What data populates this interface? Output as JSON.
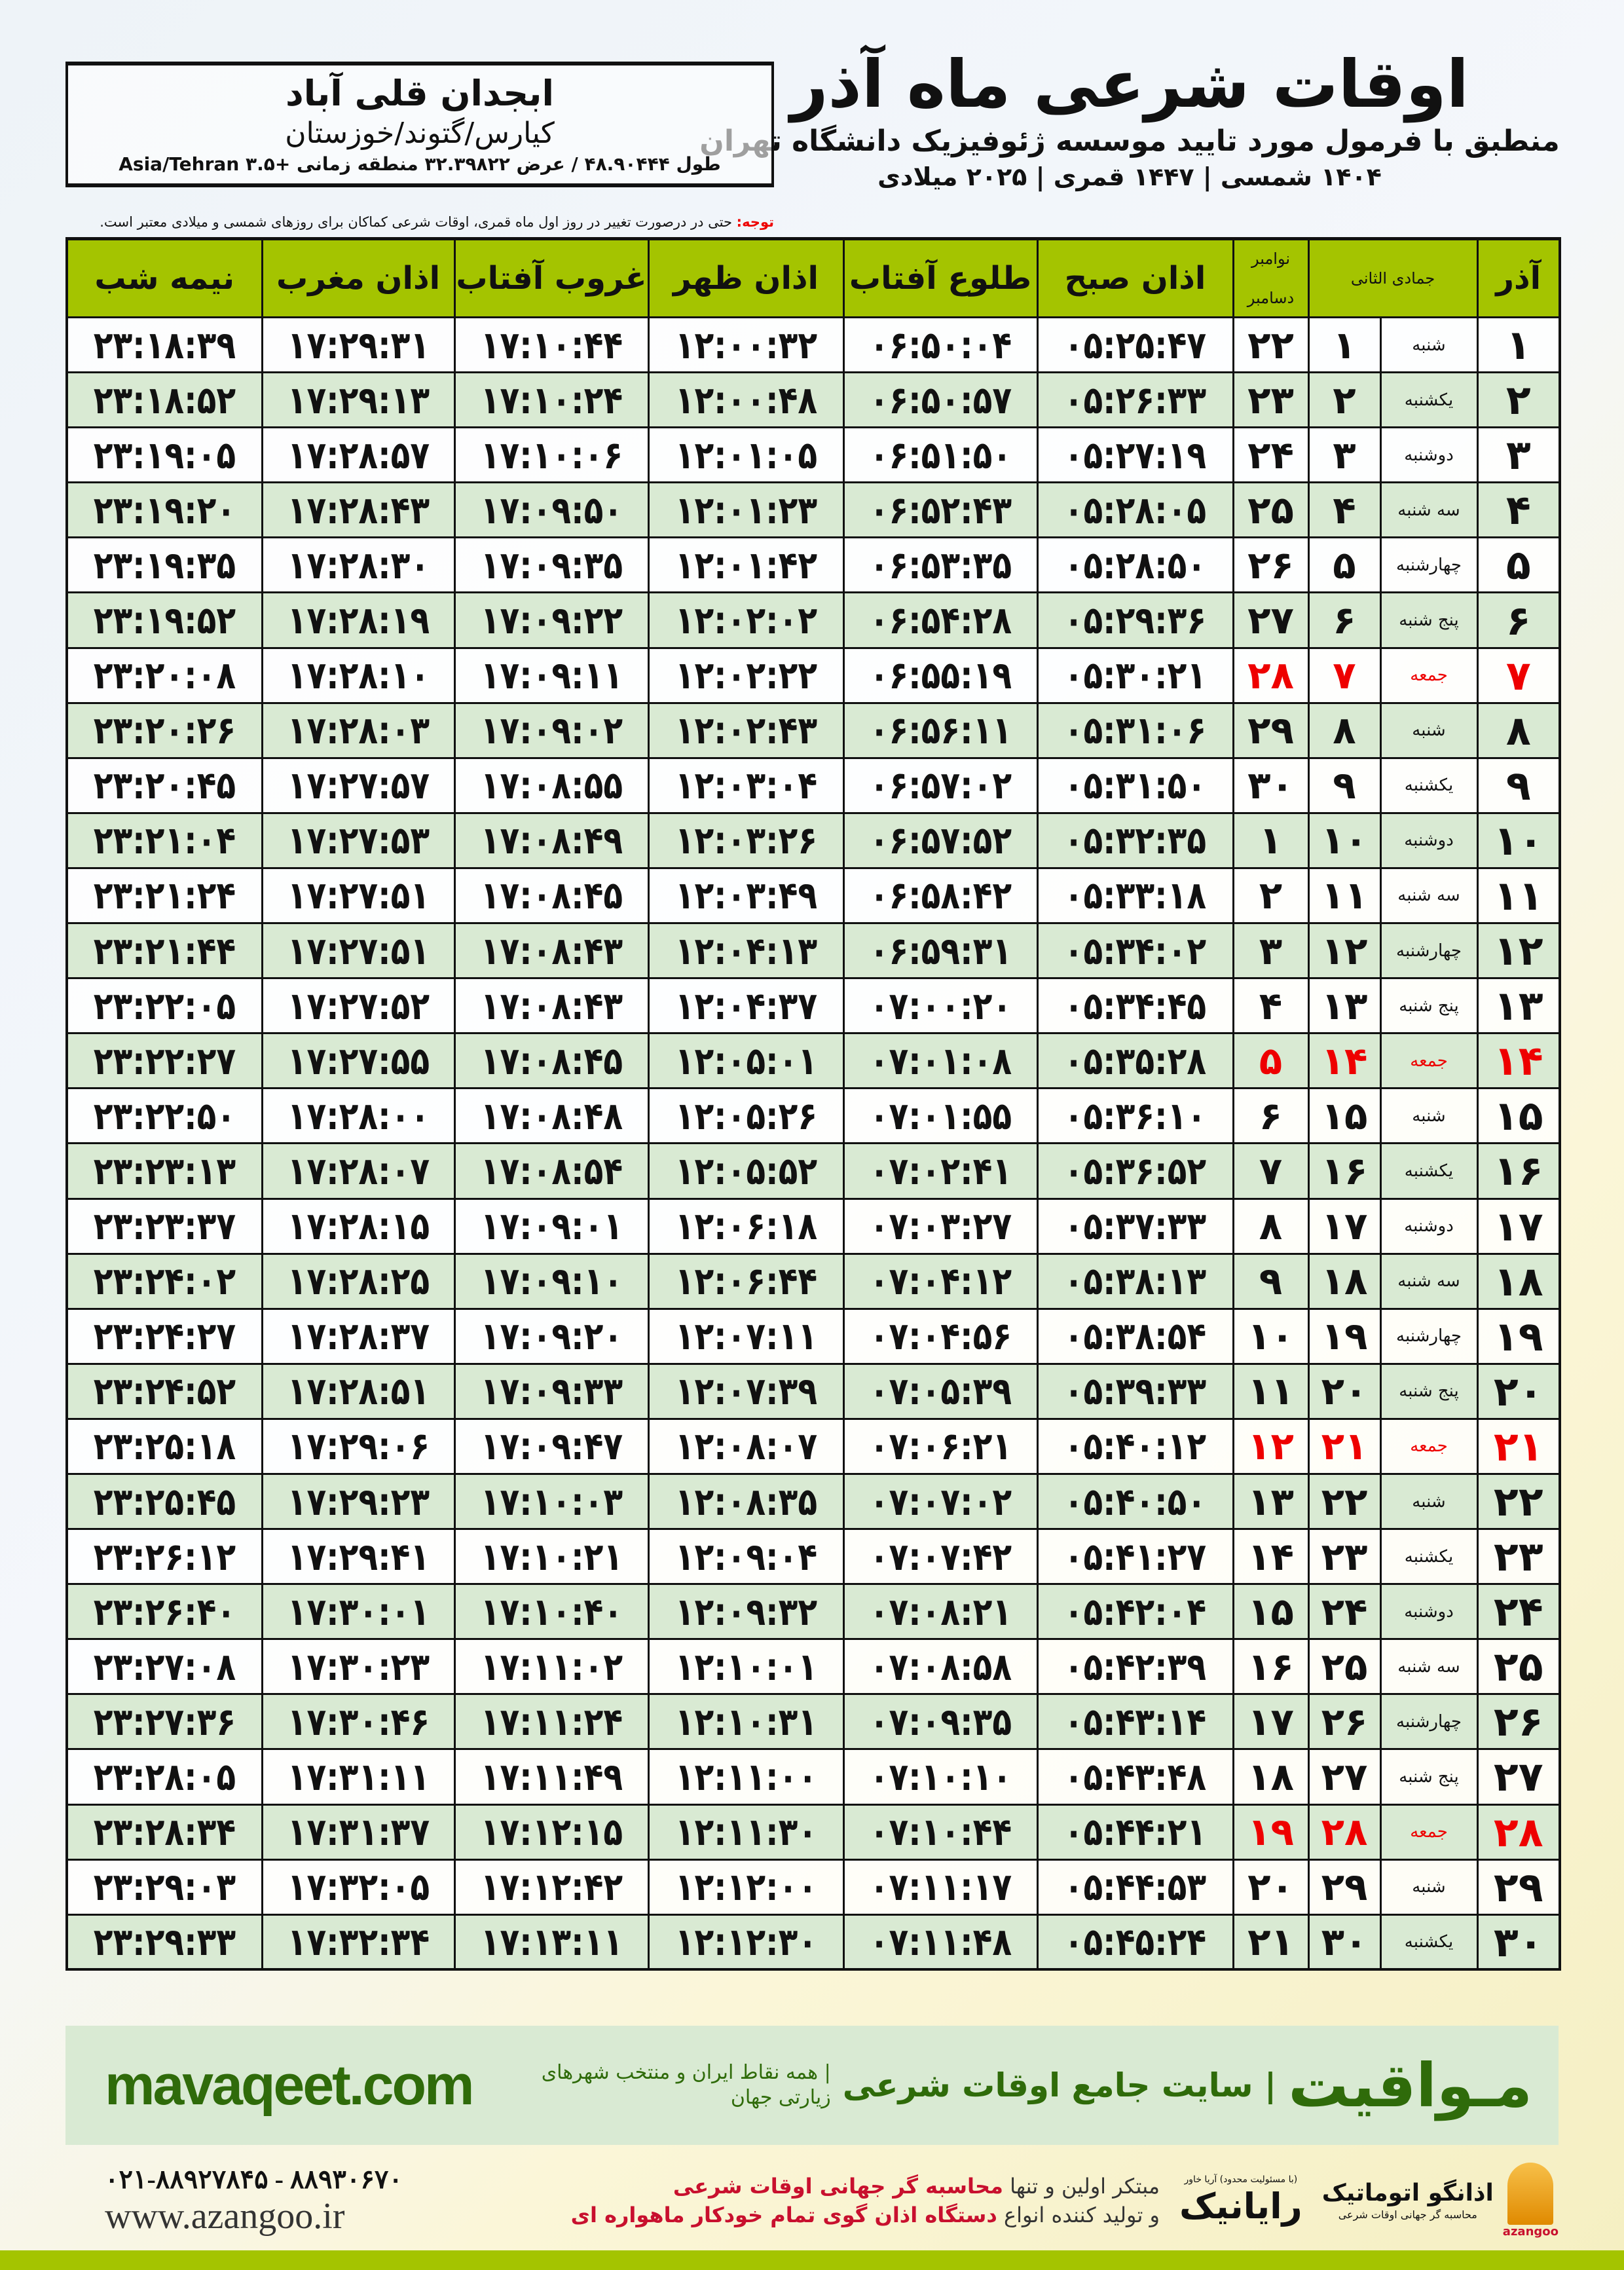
{
  "header": {
    "title": "اوقات شرعی ماه آذر",
    "subtitle": "منطبق با فرمول مورد تایید موسسه ژئوفیزیک دانشگاه تهران",
    "dateline": "۱۴۰۴ شمسی | ۱۴۴۷ قمری | ۲۰۲۵ میلادی"
  },
  "location": {
    "name": "ابجدان قلی آباد",
    "region": "کیارس/گتوند/خوزستان",
    "coords": "طول ۴۸.۹۰۴۴۴ / عرض ۳۲.۳۹۸۲۲ منطقه زمانی +۳.۵ Asia/Tehran"
  },
  "note": {
    "label": "توجه:",
    "text": " حتی در درصورت تغییر در روز اول ماه قمری، اوقات شرعی کماکان برای روزهای شمسی و میلادی معتبر است."
  },
  "table": {
    "columns": {
      "day": "آذر",
      "hijri": "جمادی الثانی",
      "greg_top": "نوامبر",
      "greg_bottom": "دسامبر",
      "fajr": "اذان صبح",
      "sunrise": "طلوع آفتاب",
      "dhuhr": "اذان ظهر",
      "sunset": "غروب آفتاب",
      "maghrib": "اذان مغرب",
      "midnight": "نیمه شب"
    },
    "friday_color": "#e00000",
    "header_color": "#a4c400",
    "alt_row_color": "#d9ead3",
    "rows": [
      [
        "۱",
        "شنبه",
        "۱",
        "۲۲",
        "۰۵:۲۵:۴۷",
        "۰۶:۵۰:۰۴",
        "۱۲:۰۰:۳۲",
        "۱۷:۱۰:۴۴",
        "۱۷:۲۹:۳۱",
        "۲۳:۱۸:۳۹"
      ],
      [
        "۲",
        "یکشنبه",
        "۲",
        "۲۳",
        "۰۵:۲۶:۳۳",
        "۰۶:۵۰:۵۷",
        "۱۲:۰۰:۴۸",
        "۱۷:۱۰:۲۴",
        "۱۷:۲۹:۱۳",
        "۲۳:۱۸:۵۲"
      ],
      [
        "۳",
        "دوشنبه",
        "۳",
        "۲۴",
        "۰۵:۲۷:۱۹",
        "۰۶:۵۱:۵۰",
        "۱۲:۰۱:۰۵",
        "۱۷:۱۰:۰۶",
        "۱۷:۲۸:۵۷",
        "۲۳:۱۹:۰۵"
      ],
      [
        "۴",
        "سه شنبه",
        "۴",
        "۲۵",
        "۰۵:۲۸:۰۵",
        "۰۶:۵۲:۴۳",
        "۱۲:۰۱:۲۳",
        "۱۷:۰۹:۵۰",
        "۱۷:۲۸:۴۳",
        "۲۳:۱۹:۲۰"
      ],
      [
        "۵",
        "چهارشنبه",
        "۵",
        "۲۶",
        "۰۵:۲۸:۵۰",
        "۰۶:۵۳:۳۵",
        "۱۲:۰۱:۴۲",
        "۱۷:۰۹:۳۵",
        "۱۷:۲۸:۳۰",
        "۲۳:۱۹:۳۵"
      ],
      [
        "۶",
        "پنج شنبه",
        "۶",
        "۲۷",
        "۰۵:۲۹:۳۶",
        "۰۶:۵۴:۲۸",
        "۱۲:۰۲:۰۲",
        "۱۷:۰۹:۲۲",
        "۱۷:۲۸:۱۹",
        "۲۳:۱۹:۵۲"
      ],
      [
        "۷",
        "جمعه",
        "۷",
        "۲۸",
        "۰۵:۳۰:۲۱",
        "۰۶:۵۵:۱۹",
        "۱۲:۰۲:۲۲",
        "۱۷:۰۹:۱۱",
        "۱۷:۲۸:۱۰",
        "۲۳:۲۰:۰۸"
      ],
      [
        "۸",
        "شنبه",
        "۸",
        "۲۹",
        "۰۵:۳۱:۰۶",
        "۰۶:۵۶:۱۱",
        "۱۲:۰۲:۴۳",
        "۱۷:۰۹:۰۲",
        "۱۷:۲۸:۰۳",
        "۲۳:۲۰:۲۶"
      ],
      [
        "۹",
        "یکشنبه",
        "۹",
        "۳۰",
        "۰۵:۳۱:۵۰",
        "۰۶:۵۷:۰۲",
        "۱۲:۰۳:۰۴",
        "۱۷:۰۸:۵۵",
        "۱۷:۲۷:۵۷",
        "۲۳:۲۰:۴۵"
      ],
      [
        "۱۰",
        "دوشنبه",
        "۱۰",
        "۱",
        "۰۵:۳۲:۳۵",
        "۰۶:۵۷:۵۲",
        "۱۲:۰۳:۲۶",
        "۱۷:۰۸:۴۹",
        "۱۷:۲۷:۵۳",
        "۲۳:۲۱:۰۴"
      ],
      [
        "۱۱",
        "سه شنبه",
        "۱۱",
        "۲",
        "۰۵:۳۳:۱۸",
        "۰۶:۵۸:۴۲",
        "۱۲:۰۳:۴۹",
        "۱۷:۰۸:۴۵",
        "۱۷:۲۷:۵۱",
        "۲۳:۲۱:۲۴"
      ],
      [
        "۱۲",
        "چهارشنبه",
        "۱۲",
        "۳",
        "۰۵:۳۴:۰۲",
        "۰۶:۵۹:۳۱",
        "۱۲:۰۴:۱۳",
        "۱۷:۰۸:۴۳",
        "۱۷:۲۷:۵۱",
        "۲۳:۲۱:۴۴"
      ],
      [
        "۱۳",
        "پنج شنبه",
        "۱۳",
        "۴",
        "۰۵:۳۴:۴۵",
        "۰۷:۰۰:۲۰",
        "۱۲:۰۴:۳۷",
        "۱۷:۰۸:۴۳",
        "۱۷:۲۷:۵۲",
        "۲۳:۲۲:۰۵"
      ],
      [
        "۱۴",
        "جمعه",
        "۱۴",
        "۵",
        "۰۵:۳۵:۲۸",
        "۰۷:۰۱:۰۸",
        "۱۲:۰۵:۰۱",
        "۱۷:۰۸:۴۵",
        "۱۷:۲۷:۵۵",
        "۲۳:۲۲:۲۷"
      ],
      [
        "۱۵",
        "شنبه",
        "۱۵",
        "۶",
        "۰۵:۳۶:۱۰",
        "۰۷:۰۱:۵۵",
        "۱۲:۰۵:۲۶",
        "۱۷:۰۸:۴۸",
        "۱۷:۲۸:۰۰",
        "۲۳:۲۲:۵۰"
      ],
      [
        "۱۶",
        "یکشنبه",
        "۱۶",
        "۷",
        "۰۵:۳۶:۵۲",
        "۰۷:۰۲:۴۱",
        "۱۲:۰۵:۵۲",
        "۱۷:۰۸:۵۴",
        "۱۷:۲۸:۰۷",
        "۲۳:۲۳:۱۳"
      ],
      [
        "۱۷",
        "دوشنبه",
        "۱۷",
        "۸",
        "۰۵:۳۷:۳۳",
        "۰۷:۰۳:۲۷",
        "۱۲:۰۶:۱۸",
        "۱۷:۰۹:۰۱",
        "۱۷:۲۸:۱۵",
        "۲۳:۲۳:۳۷"
      ],
      [
        "۱۸",
        "سه شنبه",
        "۱۸",
        "۹",
        "۰۵:۳۸:۱۳",
        "۰۷:۰۴:۱۲",
        "۱۲:۰۶:۴۴",
        "۱۷:۰۹:۱۰",
        "۱۷:۲۸:۲۵",
        "۲۳:۲۴:۰۲"
      ],
      [
        "۱۹",
        "چهارشنبه",
        "۱۹",
        "۱۰",
        "۰۵:۳۸:۵۴",
        "۰۷:۰۴:۵۶",
        "۱۲:۰۷:۱۱",
        "۱۷:۰۹:۲۰",
        "۱۷:۲۸:۳۷",
        "۲۳:۲۴:۲۷"
      ],
      [
        "۲۰",
        "پنج شنبه",
        "۲۰",
        "۱۱",
        "۰۵:۳۹:۳۳",
        "۰۷:۰۵:۳۹",
        "۱۲:۰۷:۳۹",
        "۱۷:۰۹:۳۳",
        "۱۷:۲۸:۵۱",
        "۲۳:۲۴:۵۲"
      ],
      [
        "۲۱",
        "جمعه",
        "۲۱",
        "۱۲",
        "۰۵:۴۰:۱۲",
        "۰۷:۰۶:۲۱",
        "۱۲:۰۸:۰۷",
        "۱۷:۰۹:۴۷",
        "۱۷:۲۹:۰۶",
        "۲۳:۲۵:۱۸"
      ],
      [
        "۲۲",
        "شنبه",
        "۲۲",
        "۱۳",
        "۰۵:۴۰:۵۰",
        "۰۷:۰۷:۰۲",
        "۱۲:۰۸:۳۵",
        "۱۷:۱۰:۰۳",
        "۱۷:۲۹:۲۳",
        "۲۳:۲۵:۴۵"
      ],
      [
        "۲۳",
        "یکشنبه",
        "۲۳",
        "۱۴",
        "۰۵:۴۱:۲۷",
        "۰۷:۰۷:۴۲",
        "۱۲:۰۹:۰۴",
        "۱۷:۱۰:۲۱",
        "۱۷:۲۹:۴۱",
        "۲۳:۲۶:۱۲"
      ],
      [
        "۲۴",
        "دوشنبه",
        "۲۴",
        "۱۵",
        "۰۵:۴۲:۰۴",
        "۰۷:۰۸:۲۱",
        "۱۲:۰۹:۳۲",
        "۱۷:۱۰:۴۰",
        "۱۷:۳۰:۰۱",
        "۲۳:۲۶:۴۰"
      ],
      [
        "۲۵",
        "سه شنبه",
        "۲۵",
        "۱۶",
        "۰۵:۴۲:۳۹",
        "۰۷:۰۸:۵۸",
        "۱۲:۱۰:۰۱",
        "۱۷:۱۱:۰۲",
        "۱۷:۳۰:۲۳",
        "۲۳:۲۷:۰۸"
      ],
      [
        "۲۶",
        "چهارشنبه",
        "۲۶",
        "۱۷",
        "۰۵:۴۳:۱۴",
        "۰۷:۰۹:۳۵",
        "۱۲:۱۰:۳۱",
        "۱۷:۱۱:۲۴",
        "۱۷:۳۰:۴۶",
        "۲۳:۲۷:۳۶"
      ],
      [
        "۲۷",
        "پنج شنبه",
        "۲۷",
        "۱۸",
        "۰۵:۴۳:۴۸",
        "۰۷:۱۰:۱۰",
        "۱۲:۱۱:۰۰",
        "۱۷:۱۱:۴۹",
        "۱۷:۳۱:۱۱",
        "۲۳:۲۸:۰۵"
      ],
      [
        "۲۸",
        "جمعه",
        "۲۸",
        "۱۹",
        "۰۵:۴۴:۲۱",
        "۰۷:۱۰:۴۴",
        "۱۲:۱۱:۳۰",
        "۱۷:۱۲:۱۵",
        "۱۷:۳۱:۳۷",
        "۲۳:۲۸:۳۴"
      ],
      [
        "۲۹",
        "شنبه",
        "۲۹",
        "۲۰",
        "۰۵:۴۴:۵۳",
        "۰۷:۱۱:۱۷",
        "۱۲:۱۲:۰۰",
        "۱۷:۱۲:۴۲",
        "۱۷:۳۲:۰۵",
        "۲۳:۲۹:۰۳"
      ],
      [
        "۳۰",
        "یکشنبه",
        "۳۰",
        "۲۱",
        "۰۵:۴۵:۲۴",
        "۰۷:۱۱:۴۸",
        "۱۲:۱۲:۳۰",
        "۱۷:۱۳:۱۱",
        "۱۷:۳۲:۳۴",
        "۲۳:۲۹:۳۳"
      ]
    ]
  },
  "footer": {
    "brand": "مـواقیت",
    "brand_tag": "| سایت جامع اوقات شرعی",
    "brand_sub": "| همه نقاط ایران و منتخب شهرهای زیارتی جهان",
    "site_url": "mavaqeet.com",
    "phones": "۰۲۱-۸۸۹۲۷۸۴۵ - ۸۸۹۳۰۶۷۰",
    "azangoo_url": "www.azangoo.ir",
    "promo1_a": "مبتکر اولین و تنها ",
    "promo1_b": "محاسبه گر جهانی اوقات شرعی",
    "promo2_a": "و تولید کننده انواع ",
    "promo2_b": "دستگاه اذان گوی تمام خودکار ماهواره ای",
    "rayanik": "رایانیک",
    "rayanik_sub": "(با مسئولیت محدود) آریا خاور",
    "azangoo_logo": "اذانگو اتوماتیک",
    "azangoo_sub": "محاسبه گر جهانی اوقات شرعی",
    "azangoo_label": "azangoo"
  }
}
